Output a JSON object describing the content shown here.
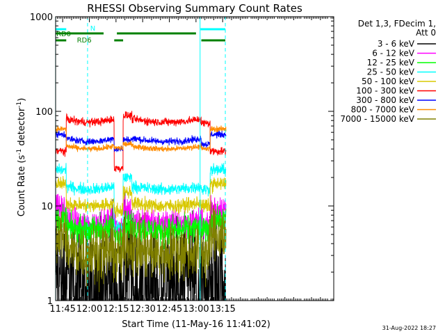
{
  "chart_data": {
    "type": "line",
    "title": "RHESSI Observing Summary Count Rates",
    "xlabel": "Start Time (11-May-16 11:41:02)",
    "ylabel": "Count Rate (s⁻¹ detector⁻¹)",
    "ylabel_parts": {
      "text": "Count Rate (s",
      "sup1": "-1",
      "mid": " detector",
      "sup2": "-1",
      "end": ")"
    },
    "y_scale": "log",
    "ylim": [
      1,
      1000
    ],
    "xlim_minutes": [
      41.03,
      197.5
    ],
    "x_ticks": [
      {
        "label": "11:45",
        "minute": 45
      },
      {
        "label": "12:00",
        "minute": 60
      },
      {
        "label": "12:15",
        "minute": 75
      },
      {
        "label": "12:30",
        "minute": 90
      },
      {
        "label": "12:45",
        "minute": 105
      },
      {
        "label": "13:00",
        "minute": 120
      },
      {
        "label": "13:15",
        "minute": 135
      }
    ],
    "y_ticks": [
      {
        "label": "1",
        "value": 1
      },
      {
        "label": "10",
        "value": 10
      },
      {
        "label": "100",
        "value": 100
      },
      {
        "label": "1000",
        "value": 1000
      }
    ],
    "legend": {
      "header": [
        "Det 1,3, FDecim 1,",
        "Att 0"
      ],
      "position": "right"
    },
    "segments": [
      {
        "start": 41.0,
        "end": 47.0,
        "state": "night"
      },
      {
        "start": 47.0,
        "end": 74.0,
        "state": "day"
      },
      {
        "start": 74.0,
        "end": 79.0,
        "state": "saa"
      },
      {
        "start": 79.0,
        "end": 84.0,
        "state": "gap"
      },
      {
        "start": 84.0,
        "end": 123.0,
        "state": "day"
      },
      {
        "start": 123.0,
        "end": 128.0,
        "state": "day2"
      },
      {
        "start": 128.0,
        "end": 137.0,
        "state": "night"
      }
    ],
    "series": [
      {
        "name": "3 - 6 keV",
        "color": "#000000",
        "levels": {
          "night": 1.8,
          "day": 1.5,
          "saa": 1.3,
          "gap": 2.5,
          "day2": 1.6
        },
        "noise": 0.55
      },
      {
        "name": "6 - 12 keV",
        "color": "#ff00ff",
        "levels": {
          "night": 9.5,
          "day": 6.5,
          "saa": 6.0,
          "gap": 9.0,
          "day2": 6.5
        },
        "noise": 0.12
      },
      {
        "name": "12 - 25 keV",
        "color": "#00ff00",
        "levels": {
          "night": 7.0,
          "day": 5.5,
          "saa": 5.0,
          "gap": 6.5,
          "day2": 5.5
        },
        "noise": 0.12
      },
      {
        "name": "25 - 50 keV",
        "color": "#00ffff",
        "levels": {
          "night": 24,
          "day": 15,
          "saa": 6.0,
          "gap": 20,
          "day2": 15
        },
        "noise": 0.05
      },
      {
        "name": "50 - 100 keV",
        "color": "#d8c800",
        "levels": {
          "night": 17,
          "day": 10,
          "saa": 9.0,
          "gap": 14,
          "day2": 10
        },
        "noise": 0.06
      },
      {
        "name": "100 - 300 keV",
        "color": "#ff0000",
        "levels": {
          "night": 38,
          "day": 77,
          "saa": 25,
          "gap": 90,
          "day2": 75
        },
        "noise": 0.035
      },
      {
        "name": "300 - 800 keV",
        "color": "#0000ff",
        "levels": {
          "night": 57,
          "day": 48,
          "saa": 40,
          "gap": 50,
          "day2": 45
        },
        "noise": 0.03
      },
      {
        "name": "800 - 7000 keV",
        "color": "#ff8c00",
        "levels": {
          "night": 65,
          "day": 40,
          "saa": 41,
          "gap": 45,
          "day2": 40
        },
        "noise": 0.025
      },
      {
        "name": "7000 - 15000 keV",
        "color": "#808000",
        "levels": {
          "night": 5.0,
          "day": 3.2,
          "saa": 3.0,
          "gap": 4.0,
          "day2": 3.2
        },
        "noise": 0.25
      }
    ],
    "flags": [
      {
        "label": "N",
        "color": "#00ffff",
        "row": 1,
        "spans": [
          [
            41.0,
            47.0
          ],
          [
            122.5,
            136.5
          ]
        ]
      },
      {
        "label": "RD0",
        "color": "#008000",
        "row": 2,
        "spans": [
          [
            41.0,
            68.0
          ],
          [
            75.5,
            120.0
          ]
        ]
      },
      {
        "label": "RD6",
        "color": "#008000",
        "row": 3,
        "spans": [
          [
            41.0,
            47.0
          ],
          [
            74.0,
            79.0
          ],
          [
            123.0,
            136.5
          ]
        ]
      }
    ],
    "vlines": [
      {
        "minute": 41.0,
        "color": "#00ffff",
        "style": "solid"
      },
      {
        "minute": 59.0,
        "color": "#00ffff",
        "style": "dashed"
      },
      {
        "minute": 122.3,
        "color": "#00ffff",
        "style": "solid"
      },
      {
        "minute": 136.5,
        "color": "#00ffff",
        "style": "dashed"
      }
    ],
    "footer_stamp": "31-Aug-2022 18:27"
  }
}
